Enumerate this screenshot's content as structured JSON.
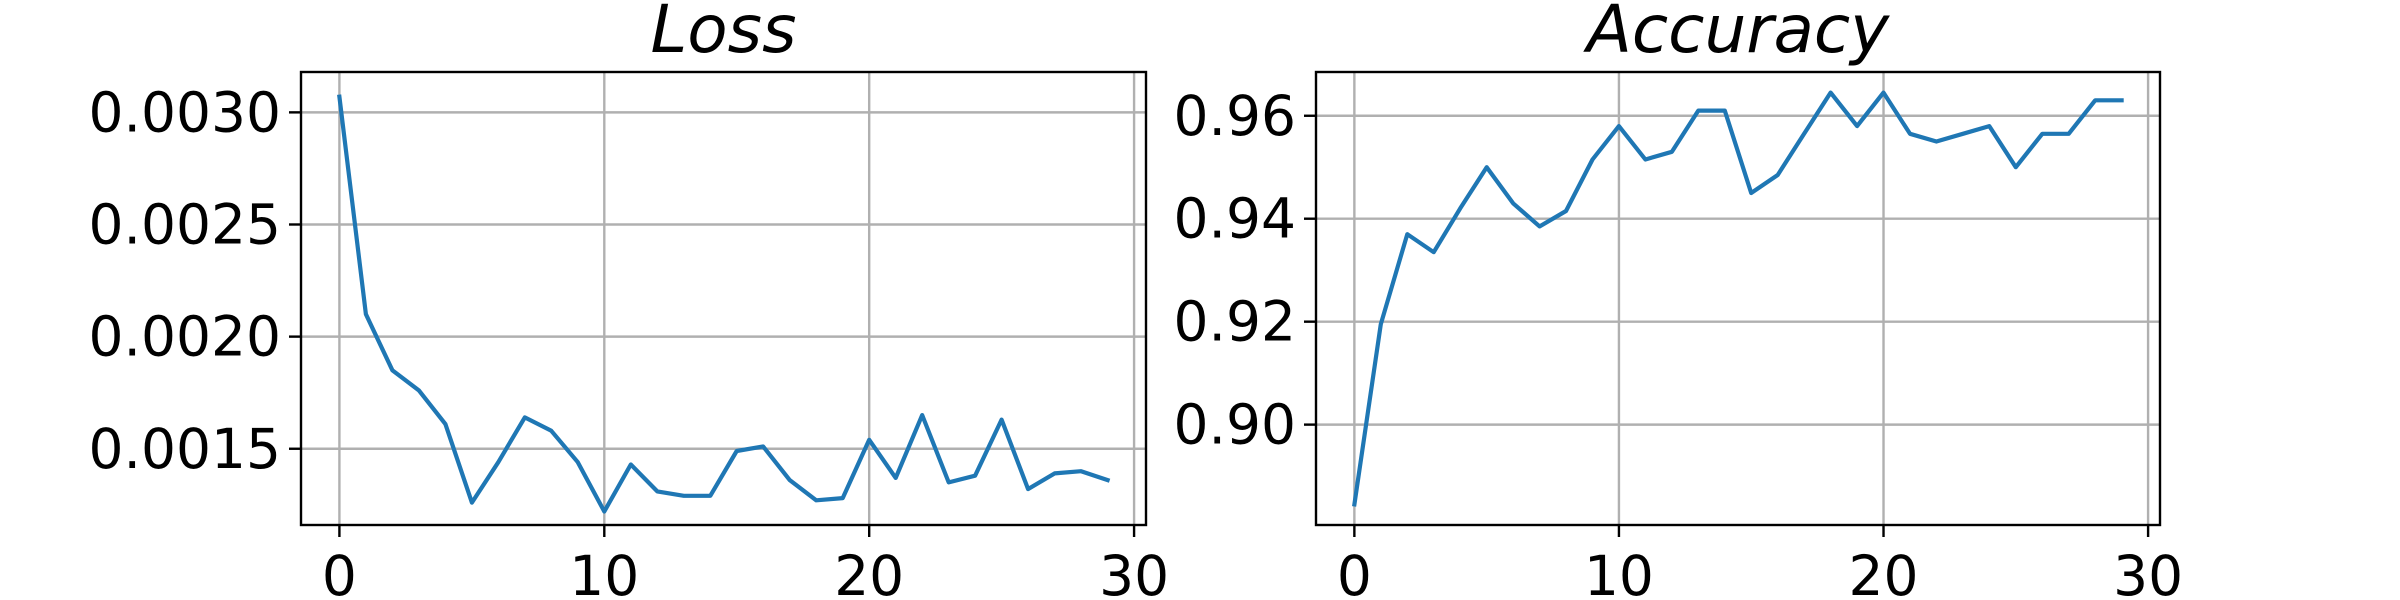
{
  "chart_data": [
    {
      "type": "line",
      "title": "Loss",
      "xlabel": "",
      "ylabel": "",
      "grid": true,
      "x": [
        0,
        1,
        2,
        3,
        4,
        5,
        6,
        7,
        8,
        9,
        10,
        11,
        12,
        13,
        14,
        15,
        16,
        17,
        18,
        19,
        20,
        21,
        22,
        23,
        24,
        25,
        26,
        27,
        28,
        29
      ],
      "series": [
        {
          "color": "#1f77b4",
          "values": [
            0.00307,
            0.0021,
            0.00185,
            0.00176,
            0.00161,
            0.00126,
            0.00144,
            0.00164,
            0.00158,
            0.00144,
            0.00122,
            0.00143,
            0.00131,
            0.00129,
            0.00129,
            0.00149,
            0.00151,
            0.00136,
            0.00127,
            0.00128,
            0.00154,
            0.00137,
            0.00165,
            0.00135,
            0.00138,
            0.00163,
            0.00132,
            0.00139,
            0.0014,
            0.00136
          ]
        }
      ],
      "xlim": [
        -1.45,
        30.45
      ],
      "ylim": [
        0.00116,
        0.00318
      ],
      "xticks": [
        0,
        10,
        20,
        30
      ],
      "yticks": [
        0.0015,
        0.002,
        0.0025,
        0.003
      ],
      "xtick_labels": [
        "0",
        "10",
        "20",
        "30"
      ],
      "ytick_labels": [
        "0.0015",
        "0.0020",
        "0.0025",
        "0.0030"
      ]
    },
    {
      "type": "line",
      "title": "Accuracy",
      "xlabel": "",
      "ylabel": "",
      "grid": true,
      "x": [
        0,
        1,
        2,
        3,
        4,
        5,
        6,
        7,
        8,
        9,
        10,
        11,
        12,
        13,
        14,
        15,
        16,
        17,
        18,
        19,
        20,
        21,
        22,
        23,
        24,
        25,
        26,
        27,
        28,
        29
      ],
      "series": [
        {
          "color": "#1f77b4",
          "values": [
            0.8845,
            0.9195,
            0.937,
            0.9335,
            0.942,
            0.95,
            0.943,
            0.9385,
            0.9415,
            0.9515,
            0.958,
            0.9515,
            0.953,
            0.961,
            0.961,
            0.945,
            0.9485,
            0.9565,
            0.9645,
            0.958,
            0.9645,
            0.9565,
            0.955,
            0.9565,
            0.958,
            0.95,
            0.9565,
            0.9565,
            0.963,
            0.963
          ]
        }
      ],
      "xlim": [
        -1.45,
        30.45
      ],
      "ylim": [
        0.8805,
        0.9685
      ],
      "xticks": [
        0,
        10,
        20,
        30
      ],
      "yticks": [
        0.9,
        0.92,
        0.94,
        0.96
      ],
      "xtick_labels": [
        "0",
        "10",
        "20",
        "30"
      ],
      "ytick_labels": [
        "0.90",
        "0.92",
        "0.94",
        "0.96"
      ]
    }
  ]
}
